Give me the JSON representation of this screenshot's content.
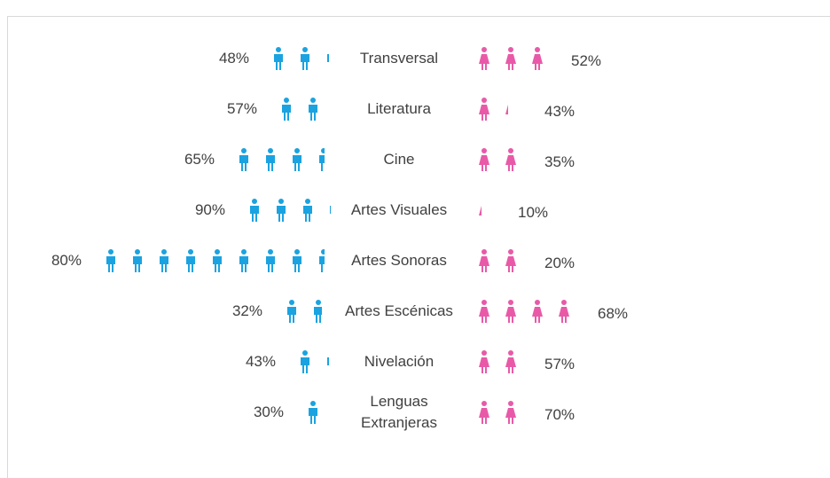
{
  "chart_data": {
    "type": "pictograph",
    "categories": [
      "Transversal",
      "Literatura",
      "Cine",
      "Artes Visuales",
      "Artes Sonoras",
      "Artes Escénicas",
      "Nivelación",
      "Lenguas Extranjeras"
    ],
    "series": [
      {
        "color": "#1aa3e0",
        "values": [
          48,
          57,
          65,
          90,
          80,
          32,
          43,
          30
        ],
        "value_labels": [
          "48%",
          "57%",
          "65%",
          "90%",
          "80%",
          "32%",
          "43%",
          "30%"
        ],
        "icons": [
          2.3,
          2,
          3.6,
          3.2,
          8.6,
          1.8,
          1.3,
          1
        ]
      },
      {
        "color": "#e85aa8",
        "values": [
          52,
          43,
          35,
          10,
          20,
          68,
          57,
          70
        ],
        "value_labels": [
          "52%",
          "43%",
          "35%",
          "10%",
          "20%",
          "68%",
          "57%",
          "70%"
        ],
        "icons": [
          3,
          1.3,
          2,
          0.3,
          2,
          4,
          2,
          2
        ]
      }
    ]
  }
}
